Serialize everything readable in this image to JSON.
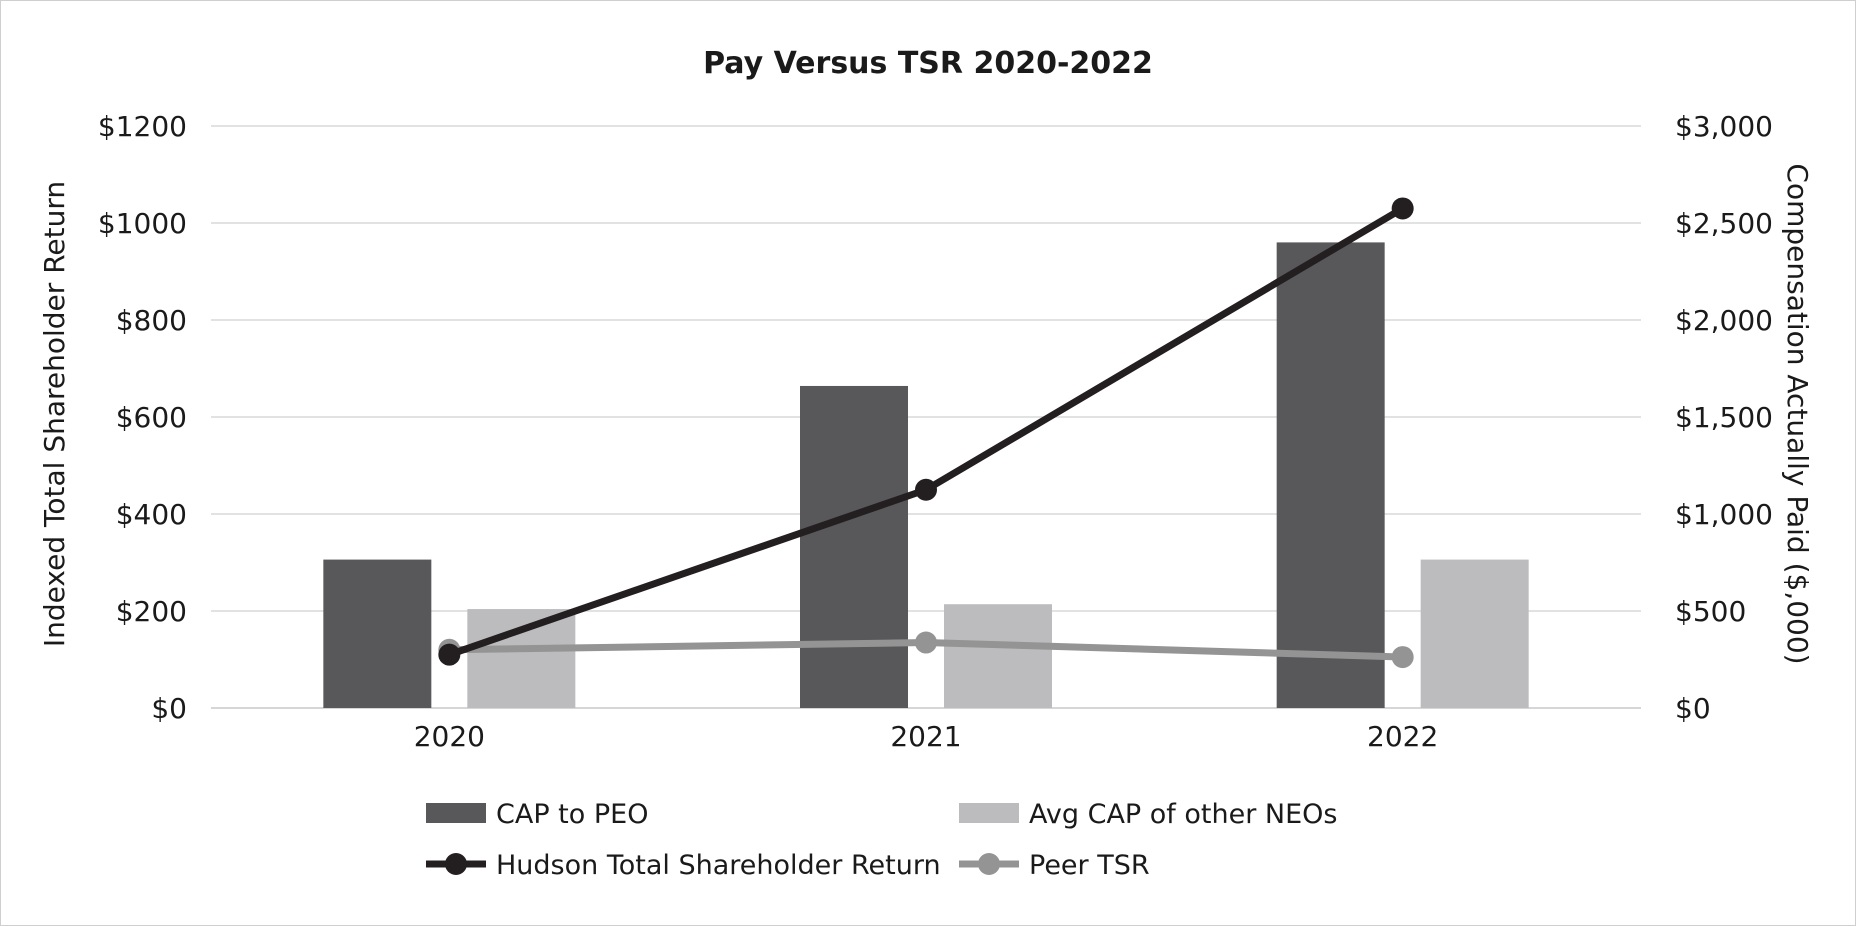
{
  "chart_data": {
    "type": "bar",
    "title": "Pay Versus TSR 2020-2022",
    "categories": [
      "2020",
      "2021",
      "2022"
    ],
    "ylabel": "Indexed Total Shareholder Return",
    "y2label": "Compensation Actually Paid ($,000)",
    "ylim": [
      0,
      1200
    ],
    "y2lim": [
      0,
      3000
    ],
    "yticks": [
      "$0",
      "$200",
      "$400",
      "$600",
      "$800",
      "$1000",
      "$1200"
    ],
    "y2ticks": [
      "$0",
      "$500",
      "$1,000",
      "$1,500",
      "$2,000",
      "$2,500",
      "$3,000"
    ],
    "grid": true,
    "legend_position": "bottom",
    "bar_series": [
      {
        "name": "CAP to PEO",
        "axis": "right",
        "values": [
          765,
          1660,
          2400
        ],
        "color": "#58585a"
      },
      {
        "name": "Avg CAP of other NEOs",
        "axis": "right",
        "values": [
          510,
          535,
          765
        ],
        "color": "#bcbcbe"
      }
    ],
    "line_series": [
      {
        "name": "Hudson Total Shareholder Return",
        "axis": "left",
        "values": [
          110,
          450,
          1030
        ],
        "color": "#231f20"
      },
      {
        "name": "Peer TSR",
        "axis": "left",
        "values": [
          120,
          135,
          105
        ],
        "color": "#949494"
      }
    ]
  }
}
